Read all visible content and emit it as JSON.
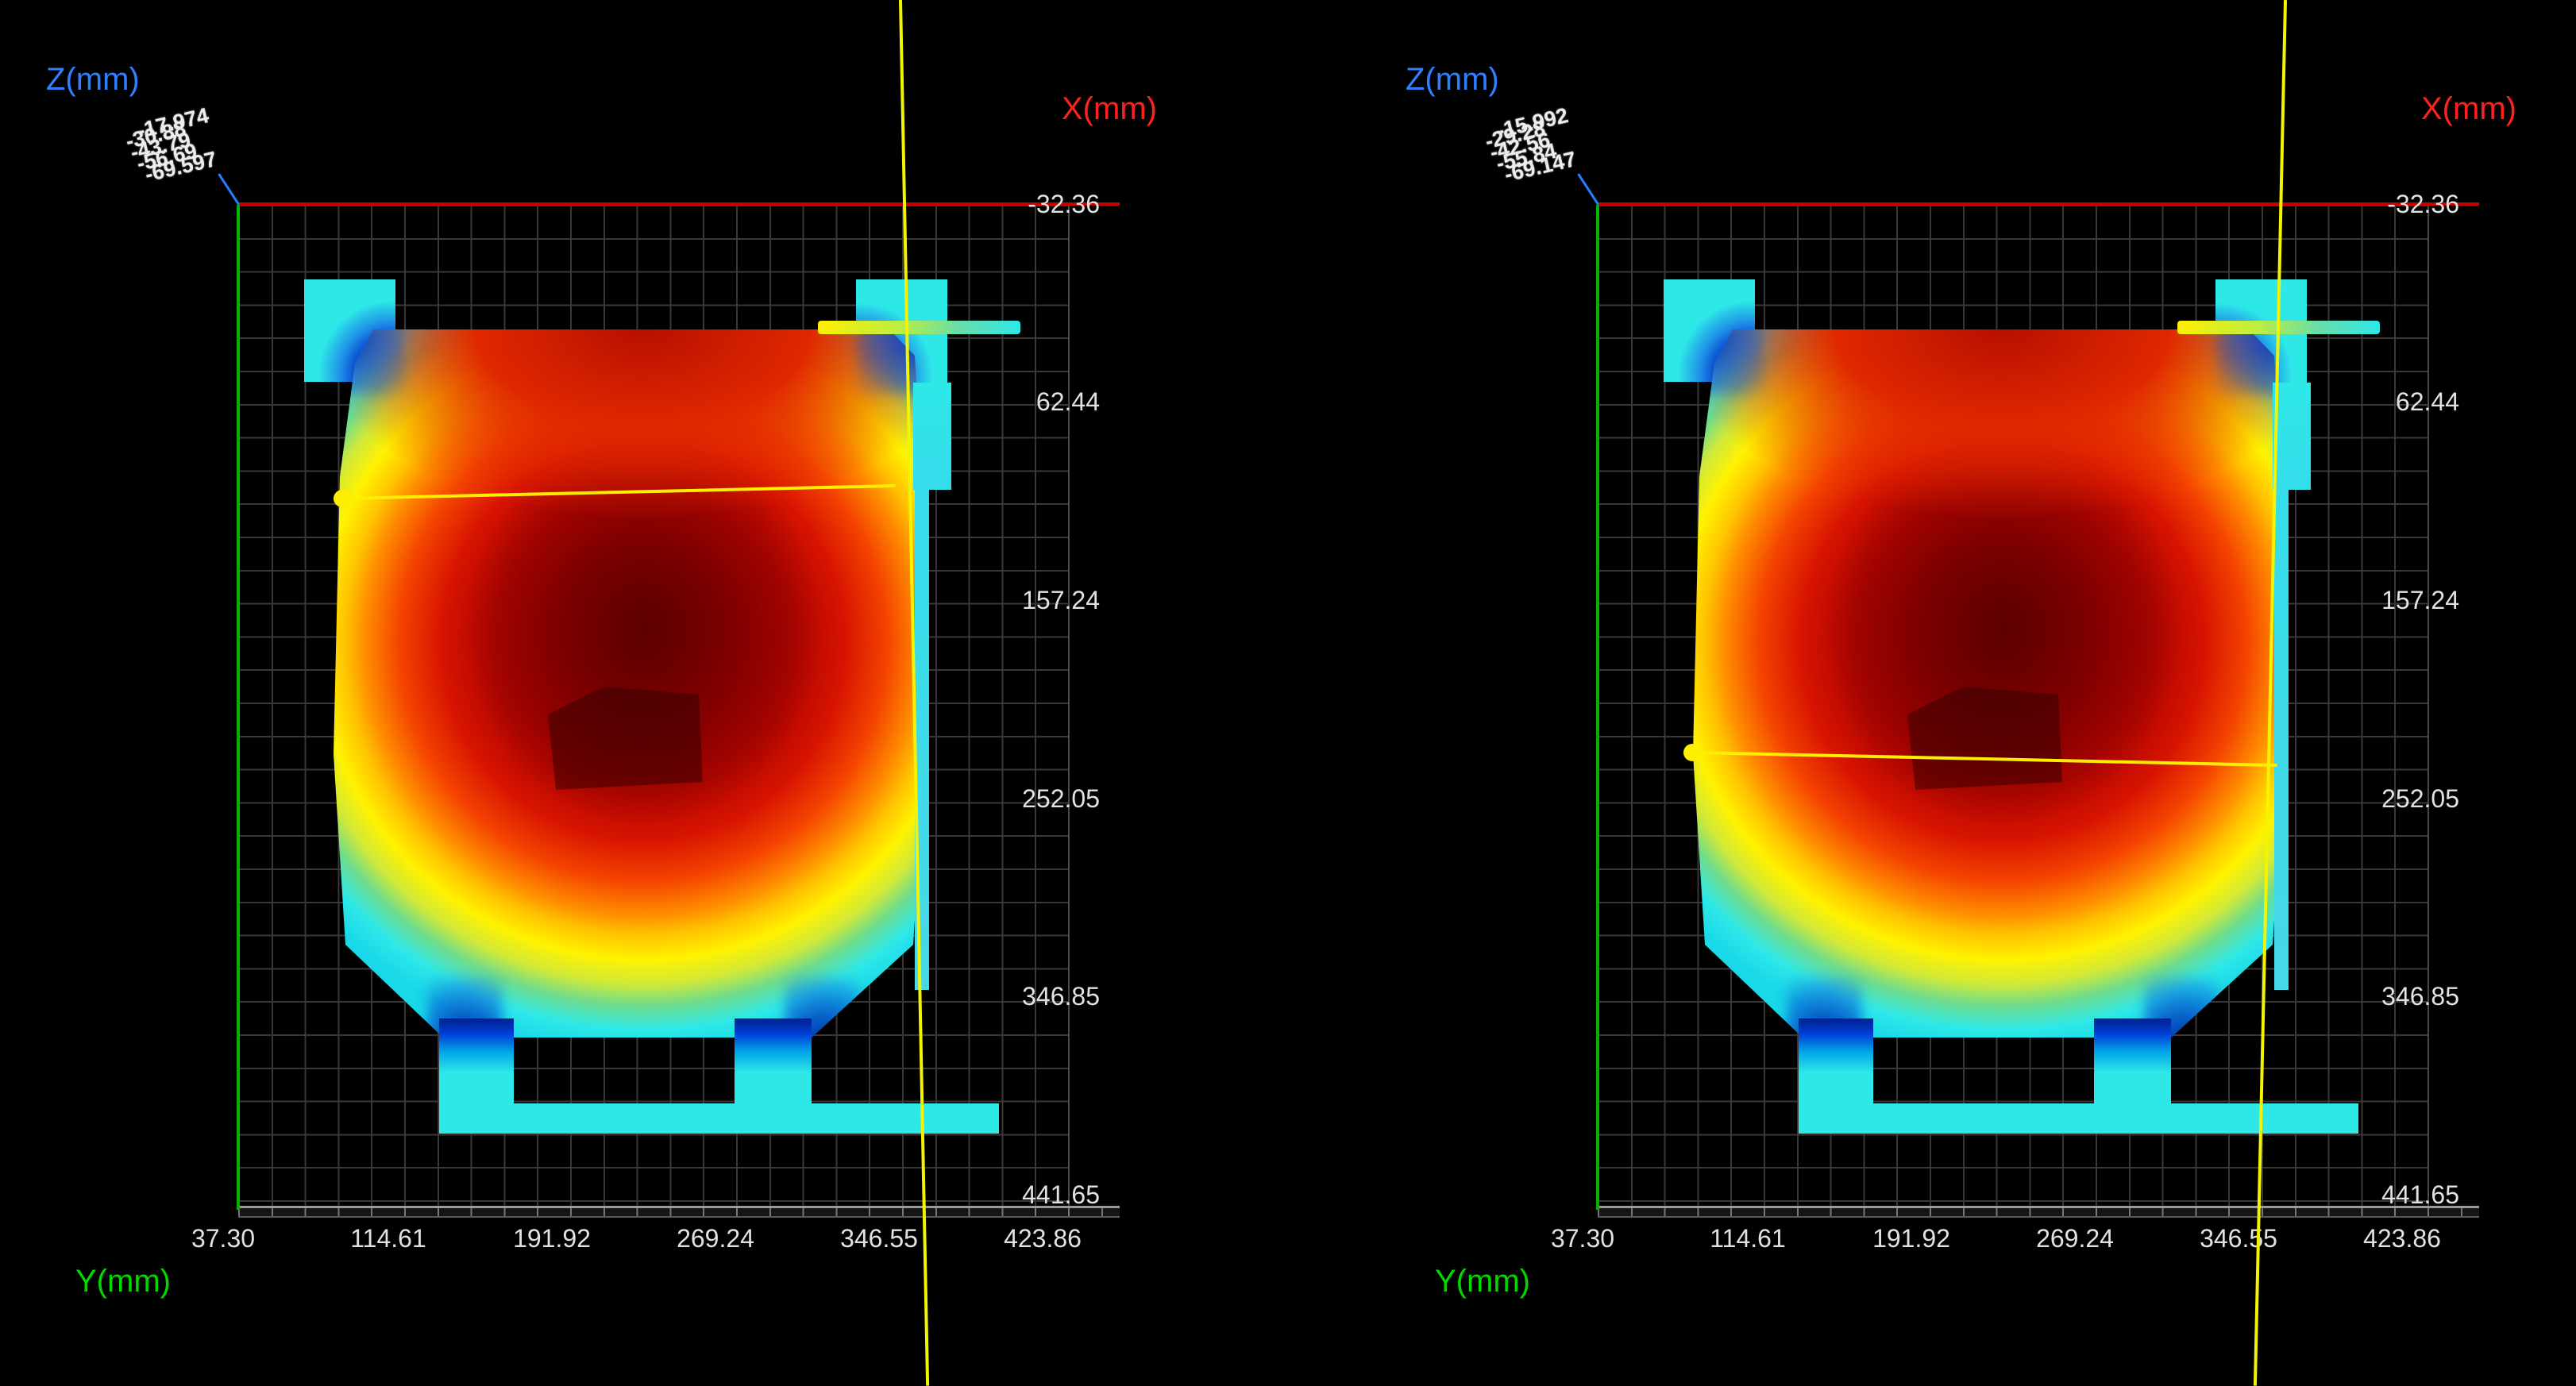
{
  "app": {
    "description": "3D point-cloud depth-map inspection viewer with two viewports",
    "background_color": "#000000"
  },
  "colors": {
    "x_axis_label": "#ff2020",
    "y_axis_label": "#00d800",
    "z_axis_label": "#2f7fff",
    "x_axis_line": "#c80000",
    "y_axis_line": "#00b400",
    "z_axis_line": "#2b7bff",
    "crosshair": "#f4f400",
    "measure_line": "#ffee00",
    "grid_line": "#383838",
    "tick_text": "#e2e2e2",
    "heat_low": "#2ee8e8",
    "heat_high": "#7a0000"
  },
  "panels": [
    {
      "id": "left-viewport",
      "axis_labels": {
        "z": "Z(mm)",
        "x": "X(mm)",
        "y": "Y(mm)"
      },
      "x_ticks": [
        "-32.36",
        "62.44",
        "157.24",
        "252.05",
        "346.85",
        "441.65"
      ],
      "y_ticks": [
        "37.30",
        "114.61",
        "191.92",
        "269.24",
        "346.55",
        "423.86"
      ],
      "z_tick_jumble": [
        "-17.974",
        "-30.88",
        "-43.79",
        "-56.69",
        "-69.597"
      ]
    },
    {
      "id": "right-viewport",
      "axis_labels": {
        "z": "Z(mm)",
        "x": "X(mm)",
        "y": "Y(mm)"
      },
      "x_ticks": [
        "-32.36",
        "62.44",
        "157.24",
        "252.05",
        "346.85",
        "441.65"
      ],
      "y_ticks": [
        "37.30",
        "114.61",
        "191.92",
        "269.24",
        "346.55",
        "423.86"
      ],
      "z_tick_jumble": [
        "-15.992",
        "-29.28",
        "-42.56",
        "-55.84",
        "-69.147"
      ]
    }
  ]
}
